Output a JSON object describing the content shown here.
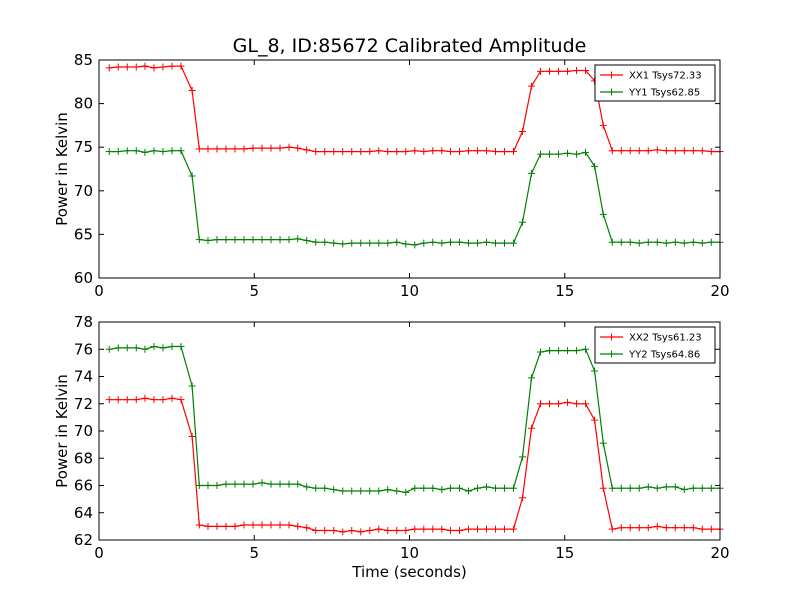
{
  "chart_data": [
    {
      "type": "line",
      "title": "GL_8, ID:85672 Calibrated Amplitude",
      "xlabel": "",
      "ylabel": "Power in Kelvin",
      "xlim": [
        0,
        20
      ],
      "ylim": [
        60,
        85
      ],
      "xticks": [
        "0",
        "5",
        "10",
        "15",
        "20"
      ],
      "yticks": [
        "60",
        "65",
        "70",
        "75",
        "80",
        "85"
      ],
      "legend_position": "top-right",
      "grid": false,
      "x": [
        0.33,
        0.62,
        0.91,
        1.2,
        1.48,
        1.77,
        2.06,
        2.35,
        2.64,
        3.0,
        3.23,
        3.51,
        3.8,
        4.09,
        4.38,
        4.67,
        4.96,
        5.25,
        5.54,
        5.83,
        6.12,
        6.4,
        6.69,
        6.98,
        7.27,
        7.56,
        7.85,
        8.14,
        8.43,
        8.72,
        9.01,
        9.3,
        9.59,
        9.88,
        10.17,
        10.46,
        10.75,
        11.04,
        11.32,
        11.61,
        11.9,
        12.19,
        12.48,
        12.77,
        13.06,
        13.35,
        13.64,
        13.93,
        14.22,
        14.51,
        14.8,
        15.09,
        15.38,
        15.67,
        15.96,
        16.24,
        16.53,
        16.82,
        17.11,
        17.4,
        17.69,
        17.98,
        18.27,
        18.56,
        18.85,
        19.14,
        19.43,
        19.72,
        20.0
      ],
      "series": [
        {
          "name": "XX1 Tsys72.33",
          "color": "#ff0000",
          "values": [
            84.1,
            84.2,
            84.2,
            84.2,
            84.3,
            84.1,
            84.2,
            84.3,
            84.3,
            81.5,
            74.8,
            74.8,
            74.8,
            74.8,
            74.8,
            74.8,
            74.9,
            74.9,
            74.9,
            74.9,
            75.0,
            74.9,
            74.7,
            74.5,
            74.5,
            74.5,
            74.5,
            74.5,
            74.5,
            74.5,
            74.6,
            74.5,
            74.5,
            74.5,
            74.6,
            74.5,
            74.6,
            74.6,
            74.5,
            74.5,
            74.6,
            74.6,
            74.6,
            74.5,
            74.5,
            74.5,
            76.8,
            82.0,
            83.7,
            83.7,
            83.7,
            83.7,
            83.8,
            83.8,
            82.6,
            77.5,
            74.6,
            74.6,
            74.6,
            74.6,
            74.6,
            74.7,
            74.6,
            74.6,
            74.6,
            74.6,
            74.6,
            74.5,
            74.5
          ]
        },
        {
          "name": "YY1 Tsys62.85",
          "color": "#008000",
          "values": [
            74.5,
            74.5,
            74.6,
            74.6,
            74.4,
            74.6,
            74.5,
            74.6,
            74.6,
            71.7,
            64.4,
            64.3,
            64.4,
            64.4,
            64.4,
            64.4,
            64.4,
            64.4,
            64.4,
            64.4,
            64.4,
            64.5,
            64.3,
            64.1,
            64.1,
            64.0,
            63.9,
            64.0,
            64.0,
            64.0,
            64.0,
            64.0,
            64.1,
            63.9,
            63.8,
            64.0,
            64.1,
            64.0,
            64.1,
            64.1,
            64.0,
            64.0,
            64.1,
            64.0,
            64.0,
            64.0,
            66.4,
            72.0,
            74.2,
            74.2,
            74.2,
            74.3,
            74.2,
            74.4,
            72.8,
            67.3,
            64.1,
            64.1,
            64.1,
            64.0,
            64.1,
            64.1,
            64.0,
            64.1,
            64.0,
            64.1,
            64.0,
            64.1,
            64.1
          ]
        }
      ]
    },
    {
      "type": "line",
      "title": "",
      "xlabel": "Time (seconds)",
      "ylabel": "Power in Kelvin",
      "xlim": [
        0,
        20
      ],
      "ylim": [
        62,
        78
      ],
      "xticks": [
        "0",
        "5",
        "10",
        "15",
        "20"
      ],
      "yticks": [
        "62",
        "64",
        "66",
        "68",
        "70",
        "72",
        "74",
        "76",
        "78"
      ],
      "legend_position": "top-right",
      "grid": false,
      "x": [
        0.33,
        0.62,
        0.91,
        1.2,
        1.48,
        1.77,
        2.06,
        2.35,
        2.64,
        3.0,
        3.23,
        3.51,
        3.8,
        4.09,
        4.38,
        4.67,
        4.96,
        5.25,
        5.54,
        5.83,
        6.12,
        6.4,
        6.69,
        6.98,
        7.27,
        7.56,
        7.85,
        8.14,
        8.43,
        8.72,
        9.01,
        9.3,
        9.59,
        9.88,
        10.17,
        10.46,
        10.75,
        11.04,
        11.32,
        11.61,
        11.9,
        12.19,
        12.48,
        12.77,
        13.06,
        13.35,
        13.64,
        13.93,
        14.22,
        14.51,
        14.8,
        15.09,
        15.38,
        15.67,
        15.96,
        16.24,
        16.53,
        16.82,
        17.11,
        17.4,
        17.69,
        17.98,
        18.27,
        18.56,
        18.85,
        19.14,
        19.43,
        19.72,
        20.0
      ],
      "series": [
        {
          "name": "XX2 Tsys61.23",
          "color": "#ff0000",
          "values": [
            72.3,
            72.3,
            72.3,
            72.3,
            72.4,
            72.3,
            72.3,
            72.4,
            72.3,
            69.6,
            63.1,
            63.0,
            63.0,
            63.0,
            63.0,
            63.1,
            63.1,
            63.1,
            63.1,
            63.1,
            63.1,
            63.0,
            62.9,
            62.7,
            62.7,
            62.7,
            62.6,
            62.7,
            62.6,
            62.7,
            62.8,
            62.7,
            62.7,
            62.7,
            62.8,
            62.8,
            62.8,
            62.8,
            62.7,
            62.7,
            62.8,
            62.8,
            62.8,
            62.8,
            62.8,
            62.8,
            65.1,
            70.2,
            72.0,
            72.0,
            72.0,
            72.1,
            72.0,
            72.0,
            70.8,
            65.8,
            62.8,
            62.9,
            62.9,
            62.9,
            62.9,
            63.0,
            62.9,
            62.9,
            62.9,
            62.9,
            62.8,
            62.8,
            62.8
          ]
        },
        {
          "name": "YY2 Tsys64.86",
          "color": "#008000",
          "values": [
            76.0,
            76.1,
            76.1,
            76.1,
            76.0,
            76.2,
            76.1,
            76.2,
            76.2,
            73.3,
            66.0,
            66.0,
            66.0,
            66.1,
            66.1,
            66.1,
            66.1,
            66.2,
            66.1,
            66.1,
            66.1,
            66.1,
            65.9,
            65.8,
            65.8,
            65.7,
            65.6,
            65.6,
            65.6,
            65.6,
            65.6,
            65.7,
            65.6,
            65.5,
            65.8,
            65.8,
            65.8,
            65.7,
            65.8,
            65.8,
            65.6,
            65.8,
            65.9,
            65.8,
            65.8,
            65.8,
            68.1,
            73.9,
            75.8,
            75.9,
            75.9,
            75.9,
            75.9,
            76.0,
            74.4,
            69.1,
            65.8,
            65.8,
            65.8,
            65.8,
            65.9,
            65.8,
            65.9,
            65.9,
            65.7,
            65.8,
            65.8,
            65.8,
            65.8
          ]
        }
      ]
    }
  ]
}
